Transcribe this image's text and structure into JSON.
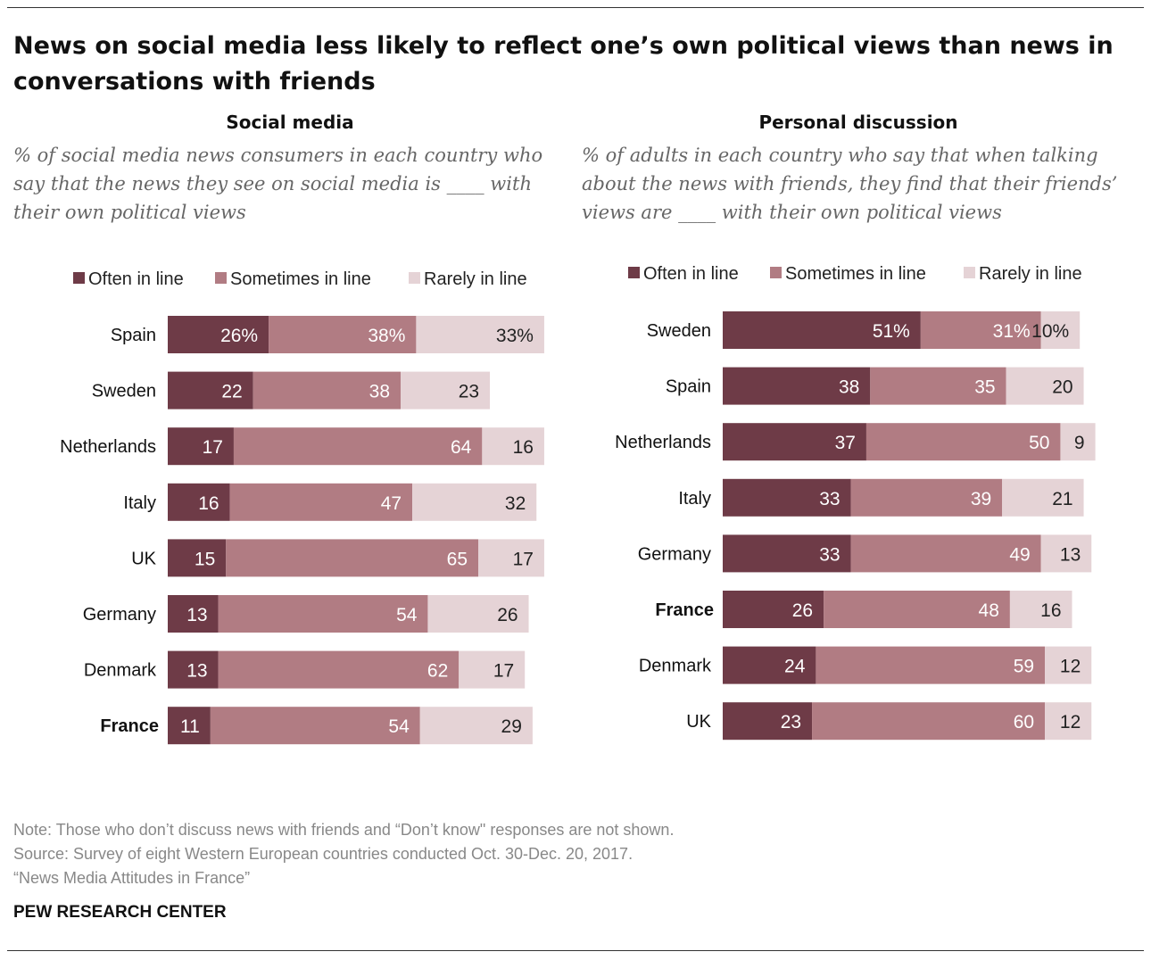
{
  "title": "News on social media less likely to reflect one’s own political views than news in conversations with friends",
  "colors": {
    "often": "#6e3b47",
    "sometimes": "#b17c83",
    "rarely": "#e5d3d6"
  },
  "chart_data": [
    {
      "type": "bar",
      "orientation": "horizontal",
      "stacked": true,
      "title": "Social media",
      "subtitle": "% of social media news consumers in each country who say that the news they see on social media is ____ with their own political views",
      "legend": [
        "Often in line",
        "Sometimes in line",
        "Rarely in line"
      ],
      "legend_position": "top",
      "categories": [
        "Spain",
        "Sweden",
        "Netherlands",
        "Italy",
        "UK",
        "Germany",
        "Denmark",
        "France"
      ],
      "highlight": "France",
      "series": [
        {
          "name": "Often in line",
          "values": [
            26,
            22,
            17,
            16,
            15,
            13,
            13,
            11
          ]
        },
        {
          "name": "Sometimes in line",
          "values": [
            38,
            38,
            64,
            47,
            65,
            54,
            62,
            54
          ]
        },
        {
          "name": "Rarely in line",
          "values": [
            33,
            23,
            16,
            32,
            17,
            26,
            17,
            29
          ]
        }
      ]
    },
    {
      "type": "bar",
      "orientation": "horizontal",
      "stacked": true,
      "title": "Personal discussion",
      "subtitle": "% of adults in each country who say that when talking about the news with friends, they find that their friends’ views are ____ with their own political views",
      "legend": [
        "Often in line",
        "Sometimes in line",
        "Rarely in line"
      ],
      "legend_position": "top",
      "categories": [
        "Sweden",
        "Spain",
        "Netherlands",
        "Italy",
        "Germany",
        "France",
        "Denmark",
        "UK"
      ],
      "highlight": "France",
      "series": [
        {
          "name": "Often in line",
          "values": [
            51,
            38,
            37,
            33,
            33,
            26,
            24,
            23
          ]
        },
        {
          "name": "Sometimes in line",
          "values": [
            31,
            35,
            50,
            39,
            49,
            48,
            59,
            60
          ]
        },
        {
          "name": "Rarely in line",
          "values": [
            10,
            20,
            9,
            21,
            13,
            16,
            12,
            12
          ]
        }
      ]
    }
  ],
  "notes": [
    "Note: Those who don’t discuss news with friends and “Don’t know\" responses are not shown.",
    "Source: Survey of eight Western European countries conducted Oct. 30-Dec. 20, 2017.",
    "“News Media Attitudes in France”"
  ],
  "brand": "PEW RESEARCH CENTER"
}
